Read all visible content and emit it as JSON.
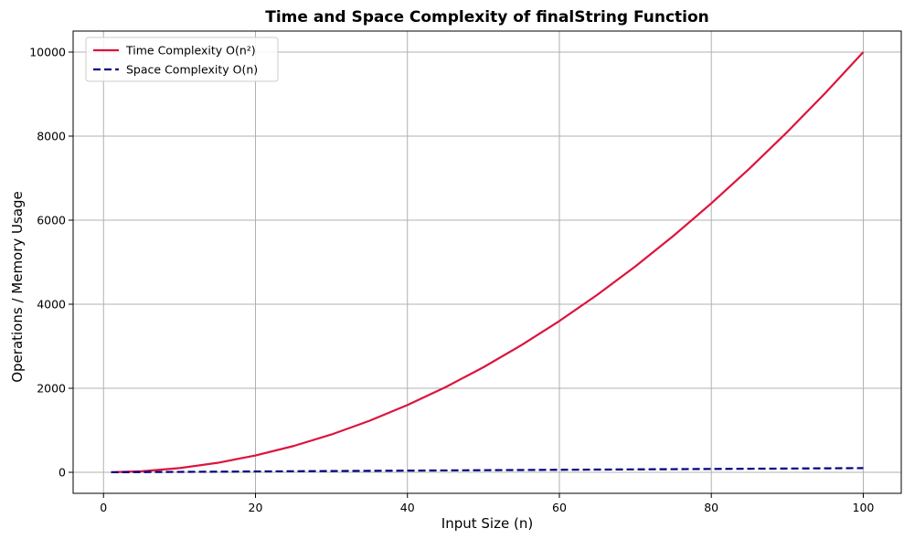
{
  "chart_data": {
    "type": "line",
    "title": "Time and Space Complexity of finalString Function",
    "xlabel": "Input Size (n)",
    "ylabel": "Operations / Memory Usage",
    "xlim": [
      -4,
      105
    ],
    "ylim": [
      -500,
      10500
    ],
    "x_ticks": [
      0,
      20,
      40,
      60,
      80,
      100
    ],
    "y_ticks": [
      0,
      2000,
      4000,
      6000,
      8000,
      10000
    ],
    "x_tick_labels": [
      "0",
      "20",
      "40",
      "60",
      "80",
      "100"
    ],
    "y_tick_labels": [
      "0",
      "2000",
      "4000",
      "6000",
      "8000",
      "10000"
    ],
    "grid": true,
    "legend_position": "top-left",
    "x": [
      1,
      5,
      10,
      15,
      20,
      25,
      30,
      35,
      40,
      45,
      50,
      55,
      60,
      65,
      70,
      75,
      80,
      85,
      90,
      95,
      100
    ],
    "series": [
      {
        "name": "Time Complexity O(n²)",
        "color": "#dc143c",
        "style": "solid",
        "values": [
          1,
          25,
          100,
          225,
          400,
          625,
          900,
          1225,
          1600,
          2025,
          2500,
          3025,
          3600,
          4225,
          4900,
          5625,
          6400,
          7225,
          8100,
          9025,
          10000
        ]
      },
      {
        "name": "Space Complexity O(n)",
        "color": "#000080",
        "style": "dashed",
        "values": [
          1,
          5,
          10,
          15,
          20,
          25,
          30,
          35,
          40,
          45,
          50,
          55,
          60,
          65,
          70,
          75,
          80,
          85,
          90,
          95,
          100
        ]
      }
    ]
  }
}
